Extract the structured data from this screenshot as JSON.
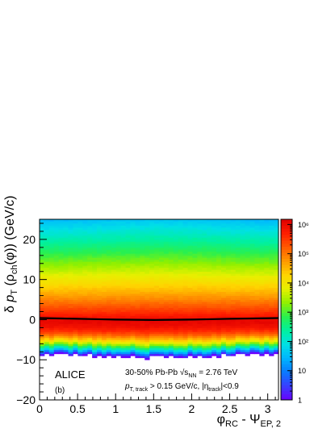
{
  "chart_data": {
    "type": "heatmap",
    "panel_label": "(b)",
    "experiment_label": "ALICE",
    "annotation_line1": "30-50% Pb-Pb √s",
    "annotation_line1_sub": "NN",
    "annotation_line1_tail": " = 2.76 TeV",
    "annotation_line2_p": "p",
    "annotation_line2_sub": "T, track",
    "annotation_line2_mid": " > 0.15 GeV/c, |η",
    "annotation_line2_sub2": "track",
    "annotation_line2_tail": "|<0.9",
    "xlabel": {
      "main": "φ",
      "sub1": "RC",
      "mid": " - Ψ",
      "sub2": "EP, 2"
    },
    "ylabel": {
      "delta": "δ ",
      "p": "p",
      "sub_T": "T",
      "mid": " (ρ",
      "sub_ch": "ch",
      "tail": "(φ)) (GeV/c)"
    },
    "xlim": [
      0,
      3.1416
    ],
    "ylim": [
      -20,
      25
    ],
    "x_ticks": [
      {
        "value": 0,
        "label": "0"
      },
      {
        "value": 0.5,
        "label": "0.5"
      },
      {
        "value": 1.0,
        "label": "1"
      },
      {
        "value": 1.5,
        "label": "1.5"
      },
      {
        "value": 2.0,
        "label": "2"
      },
      {
        "value": 2.5,
        "label": "2.5"
      },
      {
        "value": 3.0,
        "label": "3"
      }
    ],
    "y_ticks": [
      {
        "value": -20,
        "label": "−20"
      },
      {
        "value": -10,
        "label": "−10"
      },
      {
        "value": 0,
        "label": "0"
      },
      {
        "value": 10,
        "label": "10"
      },
      {
        "value": 20,
        "label": "20"
      }
    ],
    "z_scale": "log",
    "z_range": [
      1,
      1500000
    ],
    "z_ticks": [
      {
        "value": 1,
        "label": "1"
      },
      {
        "value": 10,
        "label": "10"
      },
      {
        "value": 100,
        "label": "10²"
      },
      {
        "value": 1000,
        "label": "10³"
      },
      {
        "value": 10000,
        "label": "10⁴"
      },
      {
        "value": 100000,
        "label": "10⁵"
      },
      {
        "value": 1000000,
        "label": "10⁶"
      }
    ],
    "distribution": {
      "peak_y": 0,
      "peak_counts": 1200000,
      "lower_edge_y_center": -8,
      "lower_edge_y_sides": -8.8,
      "upper_counts_at_y25": 30
    },
    "mean_profile": {
      "x": [
        0,
        0.5,
        1.0,
        1.5,
        2.0,
        2.5,
        3.1416
      ],
      "y": [
        0.4,
        0.2,
        0.0,
        -0.1,
        0.0,
        0.2,
        0.4
      ]
    },
    "grid": false,
    "colors": {
      "mean_line": "#000000",
      "frame": "#000000",
      "background": "#ffffff"
    },
    "palette": [
      "#6a00ff",
      "#3a3cff",
      "#0a78ff",
      "#00b4ff",
      "#00e0e6",
      "#00f0a0",
      "#28f050",
      "#90f000",
      "#e6f000",
      "#ffd400",
      "#ff9a00",
      "#ff5a00",
      "#ff1e00",
      "#e00000"
    ]
  }
}
